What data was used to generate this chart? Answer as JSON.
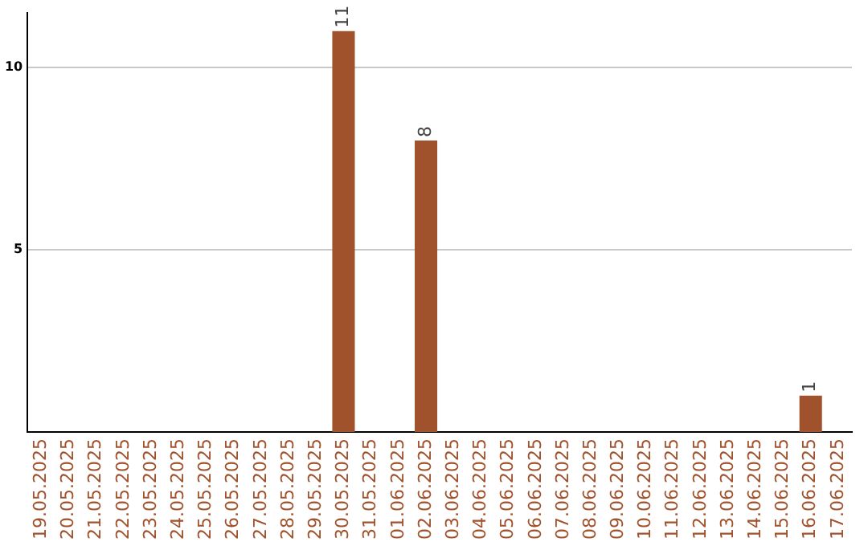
{
  "chart_data": {
    "type": "bar",
    "categories": [
      "19.05.2025",
      "20.05.2025",
      "21.05.2025",
      "22.05.2025",
      "23.05.2025",
      "24.05.2025",
      "25.05.2025",
      "26.05.2025",
      "27.05.2025",
      "28.05.2025",
      "29.05.2025",
      "30.05.2025",
      "31.05.2025",
      "01.06.2025",
      "02.06.2025",
      "03.06.2025",
      "04.06.2025",
      "05.06.2025",
      "06.06.2025",
      "07.06.2025",
      "08.06.2025",
      "09.06.2025",
      "10.06.2025",
      "11.06.2025",
      "12.06.2025",
      "13.06.2025",
      "14.06.2025",
      "15.06.2025",
      "16.06.2025",
      "17.06.2025"
    ],
    "values": [
      0,
      0,
      0,
      0,
      0,
      0,
      0,
      0,
      0,
      0,
      0,
      11,
      0,
      0,
      8,
      0,
      0,
      0,
      0,
      0,
      0,
      0,
      0,
      0,
      0,
      0,
      0,
      0,
      1,
      0
    ],
    "value_labels": [
      null,
      null,
      null,
      null,
      null,
      null,
      null,
      null,
      null,
      null,
      null,
      "11",
      null,
      null,
      "8",
      null,
      null,
      null,
      null,
      null,
      null,
      null,
      null,
      null,
      null,
      null,
      null,
      null,
      "1",
      null
    ],
    "color": "#a0522d",
    "ylim": [
      0,
      11.5
    ],
    "yticks": [
      5,
      10
    ],
    "grid": "y"
  }
}
